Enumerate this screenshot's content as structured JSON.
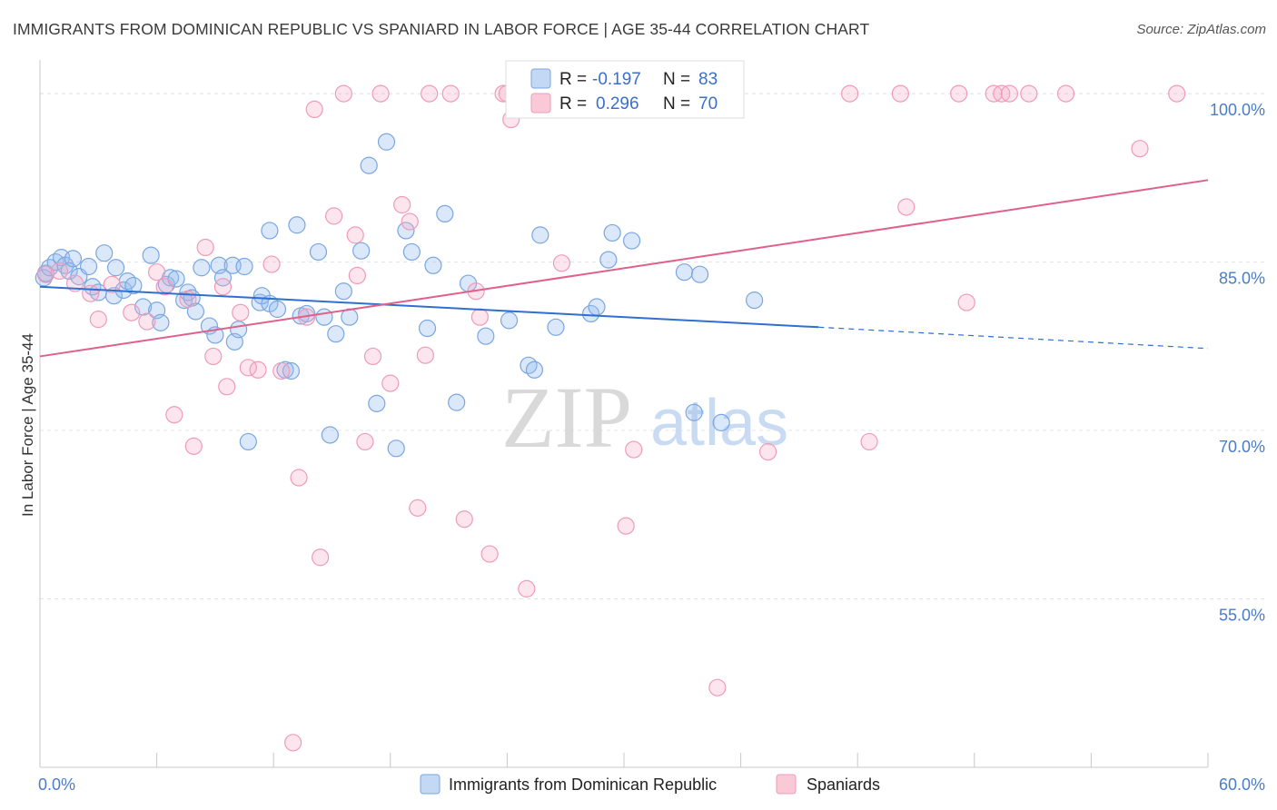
{
  "title": "IMMIGRANTS FROM DOMINICAN REPUBLIC VS SPANIARD IN LABOR FORCE | AGE 35-44 CORRELATION CHART",
  "source": "Source: ZipAtlas.com",
  "watermark": {
    "zip": "ZIP",
    "atlas": "atlas"
  },
  "colors": {
    "blue": "#6ea0e0",
    "blue_line": "#2f6fd0",
    "pink": "#ef9bb8",
    "pink_line": "#e0608a",
    "tick": "#4a7cc9"
  },
  "chart_data": {
    "type": "scatter",
    "title": "IMMIGRANTS FROM DOMINICAN REPUBLIC VS SPANIARD IN LABOR FORCE | AGE 35-44 CORRELATION CHART",
    "xlabel": "",
    "ylabel": "In Labor Force | Age 35-44",
    "xlim": [
      0,
      60
    ],
    "ylim": [
      40,
      103
    ],
    "x_tick_labels": [
      "0.0%",
      "60.0%"
    ],
    "y_ticks": [
      55,
      70,
      85,
      100
    ],
    "y_tick_labels": [
      "55.0%",
      "70.0%",
      "85.0%",
      "100.0%"
    ],
    "grid": true,
    "legend": {
      "position": "top-center",
      "entries": [
        {
          "r_label": "R =",
          "r": "-0.197",
          "n_label": "N =",
          "n": "83"
        },
        {
          "r_label": "R =",
          "r": "0.296",
          "n_label": "N =",
          "n": "70"
        }
      ]
    },
    "series": [
      {
        "name": "Immigrants from Dominican Republic",
        "color": "#6ea0e0",
        "trend": {
          "x": [
            0,
            40
          ],
          "y": [
            82.8,
            79.2
          ],
          "dashed_extension": {
            "x": [
              40,
              60
            ],
            "y": [
              79.2,
              77.3
            ]
          }
        },
        "points": [
          [
            0.2,
            83.6
          ],
          [
            0.3,
            84.0
          ],
          [
            0.5,
            84.5
          ],
          [
            0.8,
            85.0
          ],
          [
            1.1,
            85.4
          ],
          [
            1.3,
            84.7
          ],
          [
            1.5,
            84.2
          ],
          [
            1.7,
            85.3
          ],
          [
            2.0,
            83.7
          ],
          [
            2.5,
            84.6
          ],
          [
            2.7,
            82.8
          ],
          [
            3.0,
            82.3
          ],
          [
            3.3,
            85.8
          ],
          [
            3.8,
            82.0
          ],
          [
            3.9,
            84.5
          ],
          [
            4.3,
            82.5
          ],
          [
            4.5,
            83.3
          ],
          [
            4.8,
            82.9
          ],
          [
            5.3,
            81.0
          ],
          [
            5.7,
            85.6
          ],
          [
            6.0,
            80.7
          ],
          [
            6.2,
            79.6
          ],
          [
            6.5,
            83.0
          ],
          [
            6.7,
            83.6
          ],
          [
            7.0,
            83.5
          ],
          [
            7.4,
            81.6
          ],
          [
            7.6,
            82.3
          ],
          [
            7.8,
            81.8
          ],
          [
            8.0,
            80.6
          ],
          [
            8.3,
            84.5
          ],
          [
            8.7,
            79.3
          ],
          [
            9.0,
            78.5
          ],
          [
            9.2,
            84.7
          ],
          [
            9.4,
            83.6
          ],
          [
            9.9,
            84.7
          ],
          [
            10.0,
            77.9
          ],
          [
            10.2,
            79.0
          ],
          [
            10.5,
            84.6
          ],
          [
            10.7,
            69.0
          ],
          [
            11.3,
            81.4
          ],
          [
            11.4,
            82.0
          ],
          [
            11.8,
            87.8
          ],
          [
            11.8,
            81.3
          ],
          [
            12.2,
            80.8
          ],
          [
            12.6,
            75.4
          ],
          [
            12.9,
            75.3
          ],
          [
            13.2,
            88.3
          ],
          [
            13.4,
            80.2
          ],
          [
            13.7,
            80.4
          ],
          [
            14.3,
            85.9
          ],
          [
            14.6,
            80.1
          ],
          [
            14.9,
            69.6
          ],
          [
            15.2,
            78.6
          ],
          [
            15.6,
            82.4
          ],
          [
            15.9,
            80.1
          ],
          [
            16.5,
            86.0
          ],
          [
            16.9,
            93.6
          ],
          [
            17.3,
            72.4
          ],
          [
            17.8,
            95.7
          ],
          [
            18.3,
            68.4
          ],
          [
            18.8,
            87.8
          ],
          [
            19.1,
            85.9
          ],
          [
            19.9,
            79.1
          ],
          [
            20.2,
            84.7
          ],
          [
            20.8,
            89.3
          ],
          [
            21.4,
            72.5
          ],
          [
            22.0,
            83.1
          ],
          [
            22.9,
            78.4
          ],
          [
            24.1,
            79.8
          ],
          [
            25.1,
            75.8
          ],
          [
            25.4,
            75.4
          ],
          [
            25.7,
            87.4
          ],
          [
            26.5,
            79.2
          ],
          [
            28.3,
            80.4
          ],
          [
            28.6,
            81.0
          ],
          [
            29.2,
            85.2
          ],
          [
            29.4,
            87.6
          ],
          [
            30.4,
            86.9
          ],
          [
            33.1,
            84.1
          ],
          [
            33.6,
            71.6
          ],
          [
            33.9,
            83.9
          ],
          [
            35.0,
            70.7
          ],
          [
            36.7,
            81.6
          ]
        ]
      },
      {
        "name": "Spaniards",
        "color": "#ef9bb8",
        "trend": {
          "x": [
            0,
            60
          ],
          "y": [
            76.6,
            92.3
          ]
        },
        "points": [
          [
            0.3,
            83.9
          ],
          [
            1.0,
            84.2
          ],
          [
            1.8,
            83.1
          ],
          [
            2.6,
            82.2
          ],
          [
            3.0,
            79.9
          ],
          [
            3.7,
            83.0
          ],
          [
            4.7,
            80.5
          ],
          [
            5.5,
            79.7
          ],
          [
            6.0,
            84.1
          ],
          [
            6.4,
            82.8
          ],
          [
            6.9,
            71.4
          ],
          [
            7.6,
            81.7
          ],
          [
            7.9,
            68.6
          ],
          [
            8.5,
            86.3
          ],
          [
            8.9,
            76.6
          ],
          [
            9.4,
            82.8
          ],
          [
            9.6,
            73.9
          ],
          [
            10.3,
            80.5
          ],
          [
            10.7,
            75.6
          ],
          [
            11.2,
            75.4
          ],
          [
            11.9,
            84.8
          ],
          [
            12.4,
            75.3
          ],
          [
            13.0,
            42.2
          ],
          [
            13.3,
            65.8
          ],
          [
            13.7,
            80.1
          ],
          [
            14.1,
            98.6
          ],
          [
            14.4,
            58.7
          ],
          [
            15.1,
            89.1
          ],
          [
            15.6,
            100.0
          ],
          [
            16.2,
            87.4
          ],
          [
            16.3,
            83.8
          ],
          [
            16.7,
            69.0
          ],
          [
            17.1,
            76.6
          ],
          [
            17.5,
            100.0
          ],
          [
            18.0,
            74.2
          ],
          [
            18.6,
            90.1
          ],
          [
            19.0,
            88.6
          ],
          [
            19.4,
            63.1
          ],
          [
            19.8,
            76.7
          ],
          [
            20.0,
            100.0
          ],
          [
            21.1,
            100.0
          ],
          [
            21.8,
            62.1
          ],
          [
            22.4,
            82.4
          ],
          [
            22.6,
            80.1
          ],
          [
            23.1,
            59.0
          ],
          [
            23.8,
            100.0
          ],
          [
            24.0,
            100.0
          ],
          [
            24.2,
            97.7
          ],
          [
            25.0,
            55.9
          ],
          [
            26.2,
            100.0
          ],
          [
            26.8,
            84.9
          ],
          [
            28.6,
            100.0
          ],
          [
            30.1,
            61.5
          ],
          [
            30.5,
            68.3
          ],
          [
            32.6,
            100.0
          ],
          [
            34.8,
            47.1
          ],
          [
            37.4,
            68.1
          ],
          [
            41.6,
            100.0
          ],
          [
            42.6,
            69.0
          ],
          [
            44.2,
            100.0
          ],
          [
            44.5,
            89.9
          ],
          [
            47.2,
            100.0
          ],
          [
            47.6,
            81.4
          ],
          [
            49.0,
            100.0
          ],
          [
            49.4,
            100.0
          ],
          [
            49.8,
            100.0
          ],
          [
            50.8,
            100.0
          ],
          [
            52.7,
            100.0
          ],
          [
            56.5,
            95.1
          ],
          [
            58.4,
            100.0
          ]
        ]
      }
    ]
  },
  "legend_labels": [
    "Immigrants from Dominican Republic",
    "Spaniards"
  ]
}
